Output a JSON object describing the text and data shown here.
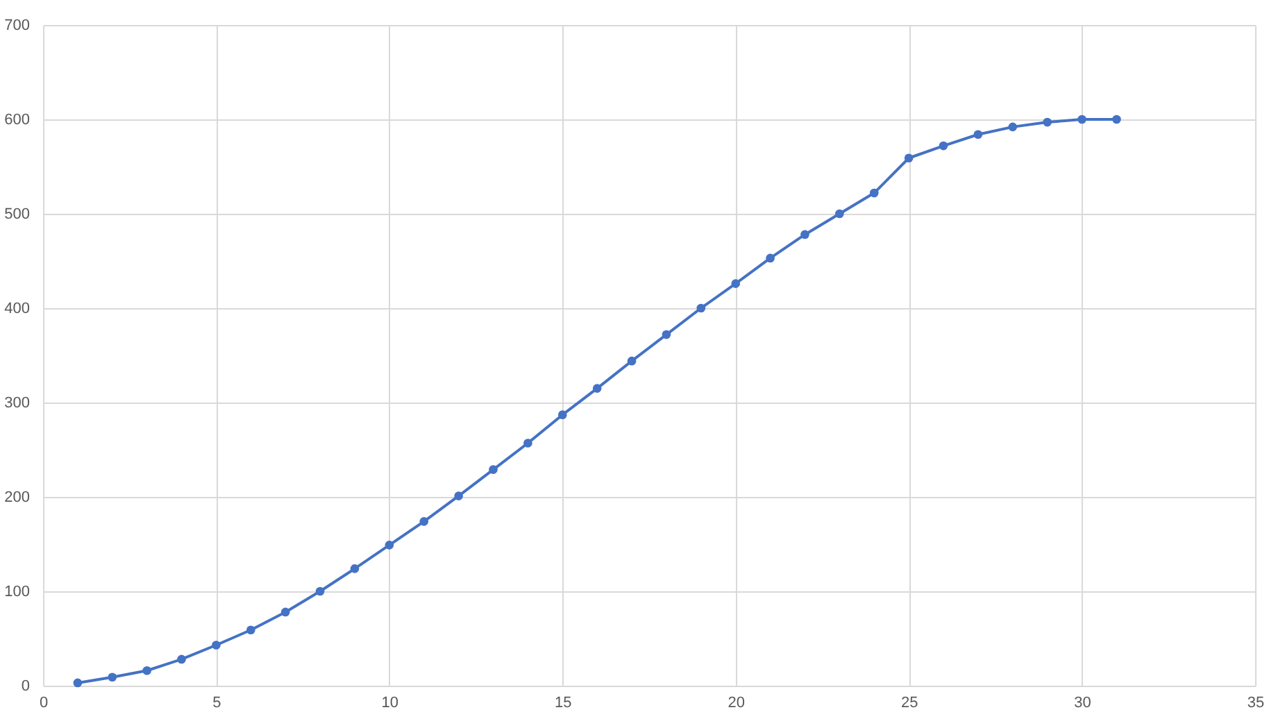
{
  "chart_data": {
    "type": "line",
    "x": [
      1,
      2,
      3,
      4,
      5,
      6,
      7,
      8,
      9,
      10,
      11,
      12,
      13,
      14,
      15,
      16,
      17,
      18,
      19,
      20,
      21,
      22,
      23,
      24,
      25,
      26,
      27,
      28,
      29,
      30,
      31
    ],
    "series": [
      {
        "color": "#4472c4",
        "values": [
          3,
          9,
          16,
          28,
          43,
          59,
          78,
          100,
          124,
          149,
          174,
          201,
          229,
          257,
          287,
          315,
          344,
          372,
          400,
          426,
          453,
          478,
          500,
          522,
          559,
          572,
          584,
          592,
          597,
          600,
          600
        ]
      }
    ],
    "xlim": [
      0,
      35
    ],
    "xticks": [
      0,
      5,
      10,
      15,
      20,
      25,
      30,
      35
    ],
    "ylim": [
      0,
      700
    ],
    "yticks": [
      0,
      100,
      200,
      300,
      400,
      500,
      600,
      700
    ],
    "grid": true,
    "marker": "circle",
    "line_style": "solid"
  }
}
